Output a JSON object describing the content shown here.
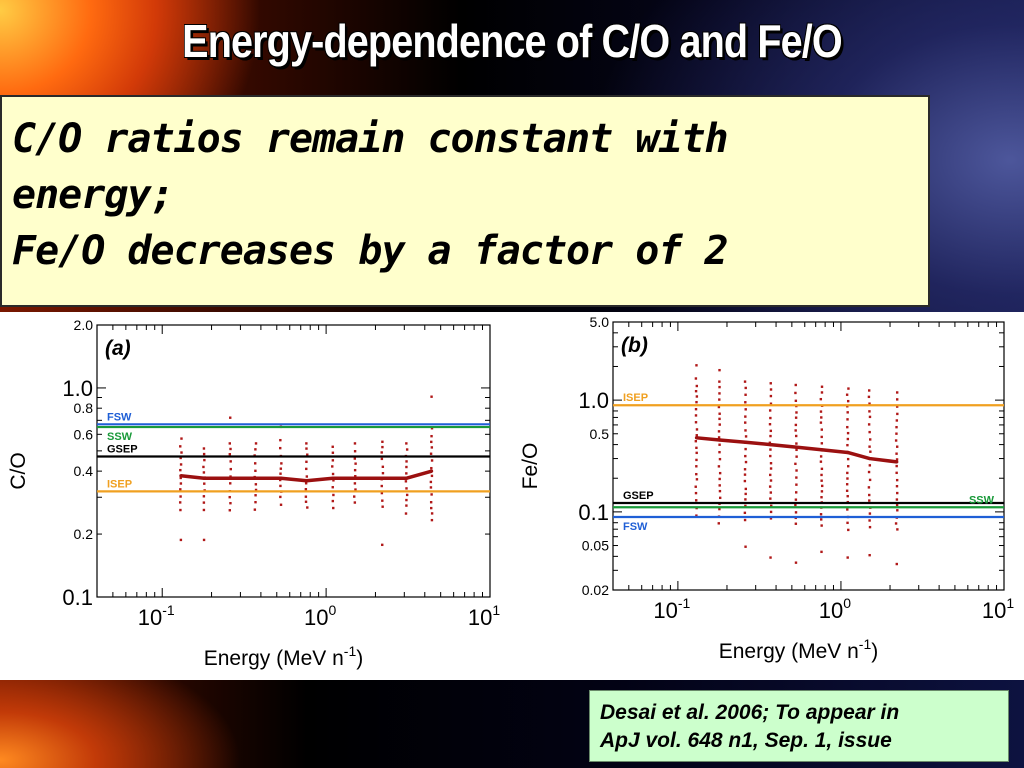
{
  "slide": {
    "title": "Energy-dependence of C/O and Fe/O",
    "callout_lines": [
      "C/O ratios remain constant with",
      "energy;",
      "Fe/O decreases by a factor of 2"
    ],
    "citation_lines": [
      "Desai et al. 2006; To appear in",
      "ApJ vol. 648 n1, Sep. 1, issue"
    ]
  },
  "colors": {
    "mean_line": "#9b1010",
    "scatter": "#b01818",
    "FSW": "#1f5fd6",
    "SSW": "#1a9a3a",
    "GSEP": "#000000",
    "ISEP": "#f0a020"
  },
  "chart_data": [
    {
      "type": "scatter",
      "panel_label": "(a)",
      "xlabel": "Energy (MeV n-1)",
      "ylabel": "C/O",
      "xscale": "log",
      "yscale": "log",
      "xlim": [
        0.04,
        10
      ],
      "ylim": [
        0.1,
        2.0
      ],
      "x_ticks": [
        {
          "value": 0.1,
          "base": "10",
          "exp": "-1"
        },
        {
          "value": 1,
          "base": "10",
          "exp": "0"
        },
        {
          "value": 10,
          "base": "10",
          "exp": "1"
        }
      ],
      "y_ticks": [
        {
          "value": 2.0,
          "label": "2.0",
          "major": false
        },
        {
          "value": 1.0,
          "label": "1.0",
          "major": true
        },
        {
          "value": 0.8,
          "label": "0.8",
          "major": false
        },
        {
          "value": 0.6,
          "label": "0.6",
          "major": false
        },
        {
          "value": 0.4,
          "label": "0.4",
          "major": false
        },
        {
          "value": 0.2,
          "label": "0.2",
          "major": false
        },
        {
          "value": 0.1,
          "label": "0.1",
          "major": true
        }
      ],
      "reference_lines": [
        {
          "name": "FSW",
          "value": 0.67,
          "color_key": "FSW",
          "label_side": "left",
          "label_pos": "above"
        },
        {
          "name": "SSW",
          "value": 0.65,
          "color_key": "SSW",
          "label_side": "left",
          "label_pos": "below"
        },
        {
          "name": "GSEP",
          "value": 0.47,
          "color_key": "GSEP",
          "label_side": "left",
          "label_pos": "above"
        },
        {
          "name": "ISEP",
          "value": 0.32,
          "color_key": "ISEP",
          "label_side": "left",
          "label_pos": "above"
        }
      ],
      "mean_series": {
        "x": [
          0.13,
          0.18,
          0.26,
          0.37,
          0.53,
          0.76,
          1.1,
          1.5,
          2.2,
          3.1,
          4.4
        ],
        "y": [
          0.38,
          0.37,
          0.37,
          0.37,
          0.37,
          0.36,
          0.37,
          0.37,
          0.37,
          0.37,
          0.4
        ]
      },
      "scatter_columns": {
        "x": [
          0.13,
          0.18,
          0.26,
          0.37,
          0.53,
          0.76,
          1.1,
          1.5,
          2.2,
          3.1,
          4.4
        ],
        "low": [
          0.26,
          0.26,
          0.26,
          0.26,
          0.27,
          0.26,
          0.26,
          0.27,
          0.26,
          0.25,
          0.22
        ],
        "high": [
          0.58,
          0.52,
          0.55,
          0.55,
          0.57,
          0.55,
          0.53,
          0.55,
          0.56,
          0.55,
          0.65
        ],
        "outliers": [
          [
            0.13,
            0.19
          ],
          [
            0.18,
            0.19
          ],
          [
            0.26,
            0.73
          ],
          [
            0.53,
            0.66
          ],
          [
            2.2,
            0.18
          ],
          [
            4.4,
            0.92
          ]
        ]
      }
    },
    {
      "type": "scatter",
      "panel_label": "(b)",
      "xlabel": "Energy (MeV n-1)",
      "ylabel": "Fe/O",
      "xscale": "log",
      "yscale": "log",
      "xlim": [
        0.04,
        10
      ],
      "ylim": [
        0.02,
        5.0
      ],
      "x_ticks": [
        {
          "value": 0.1,
          "base": "10",
          "exp": "-1"
        },
        {
          "value": 1,
          "base": "10",
          "exp": "0"
        },
        {
          "value": 10,
          "base": "10",
          "exp": "1"
        }
      ],
      "y_ticks": [
        {
          "value": 5.0,
          "label": "5.0",
          "major": false
        },
        {
          "value": 1.0,
          "label": "1.0",
          "major": true
        },
        {
          "value": 0.5,
          "label": "0.5",
          "major": false
        },
        {
          "value": 0.1,
          "label": "0.1",
          "major": true
        },
        {
          "value": 0.05,
          "label": "0.05",
          "major": false
        },
        {
          "value": 0.02,
          "label": "0.02",
          "major": false
        }
      ],
      "reference_lines": [
        {
          "name": "ISEP",
          "value": 0.9,
          "color_key": "ISEP",
          "label_side": "left",
          "label_pos": "above"
        },
        {
          "name": "GSEP",
          "value": 0.12,
          "color_key": "GSEP",
          "label_side": "left",
          "label_pos": "above"
        },
        {
          "name": "SSW",
          "value": 0.11,
          "color_key": "SSW",
          "label_side": "right",
          "label_pos": "above"
        },
        {
          "name": "FSW",
          "value": 0.09,
          "color_key": "FSW",
          "label_side": "left",
          "label_pos": "below"
        }
      ],
      "mean_series": {
        "x": [
          0.13,
          0.18,
          0.26,
          0.37,
          0.53,
          0.76,
          1.1,
          1.5,
          2.2
        ],
        "y": [
          0.46,
          0.44,
          0.42,
          0.4,
          0.38,
          0.36,
          0.34,
          0.3,
          0.28
        ]
      },
      "scatter_columns": {
        "x": [
          0.13,
          0.18,
          0.26,
          0.37,
          0.53,
          0.76,
          1.1,
          1.5,
          2.2
        ],
        "low": [
          0.09,
          0.08,
          0.08,
          0.08,
          0.07,
          0.07,
          0.07,
          0.07,
          0.07
        ],
        "high": [
          1.6,
          1.5,
          1.5,
          1.45,
          1.4,
          1.35,
          1.3,
          1.25,
          1.2
        ],
        "outliers": [
          [
            0.13,
            2.1
          ],
          [
            0.18,
            1.9
          ],
          [
            0.26,
            0.05
          ],
          [
            0.37,
            0.04
          ],
          [
            0.53,
            0.036
          ],
          [
            0.76,
            0.045
          ],
          [
            1.1,
            0.04
          ],
          [
            1.5,
            0.042
          ],
          [
            2.2,
            0.035
          ]
        ]
      }
    }
  ]
}
